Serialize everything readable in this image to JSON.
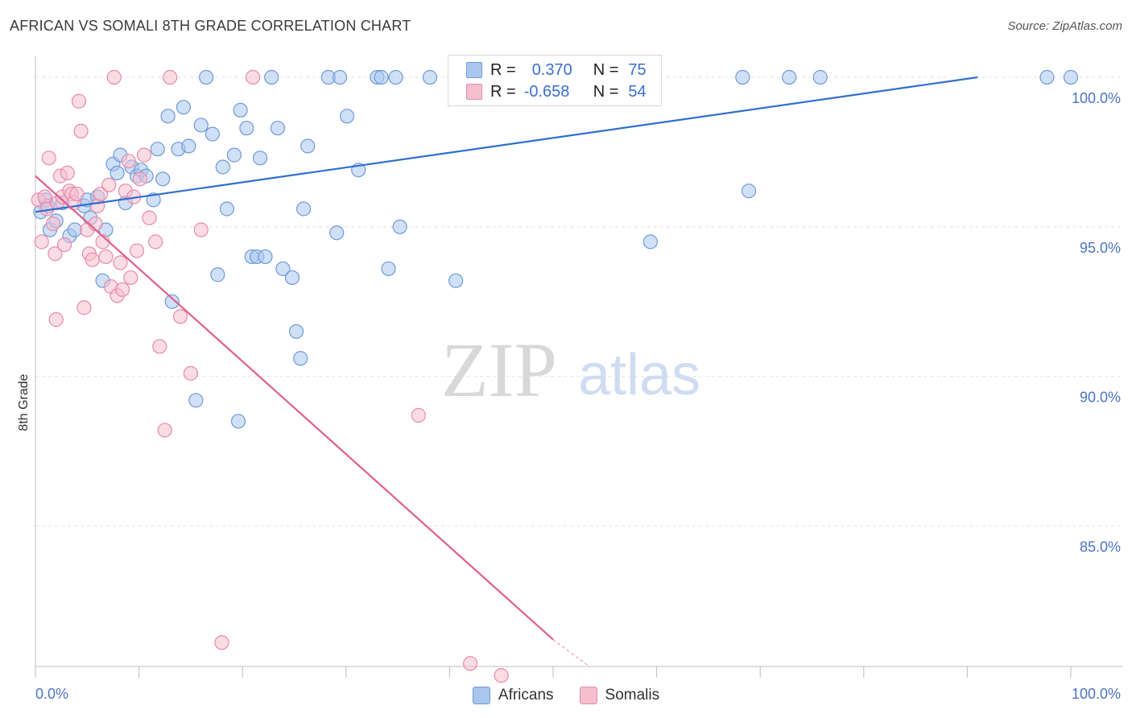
{
  "header": {
    "title": "AFRICAN VS SOMALI 8TH GRADE CORRELATION CHART",
    "source": "Source: ZipAtlas.com"
  },
  "legend": {
    "rows": [
      {
        "r_label": "R =",
        "r_value": "0.370",
        "n_label": "N =",
        "n_value": "75"
      },
      {
        "r_label": "R =",
        "r_value": "-0.658",
        "n_label": "N =",
        "n_value": "54"
      }
    ],
    "bottom": [
      "Africans",
      "Somalis"
    ]
  },
  "watermark": {
    "zip": "ZIP",
    "atlas": "atlas"
  },
  "colors": {
    "africans_fill": "#a9c6ee",
    "africans_stroke": "#6e9ad8",
    "africans_line": "#2f6fd1",
    "somalis_fill": "#f6bfd0",
    "somalis_stroke": "#e88aa8",
    "somalis_line": "#e0608c",
    "tick_text": "#4a74c4",
    "grid": "#e3e3e3"
  },
  "chart_data": {
    "type": "scatter",
    "title": "AFRICAN VS SOMALI 8TH GRADE CORRELATION CHART",
    "xlabel": "",
    "ylabel": "8th Grade",
    "xlim": [
      0,
      100
    ],
    "ylim": [
      80.3,
      100.7
    ],
    "x_tick_labels": [
      "0.0%",
      "100.0%"
    ],
    "y_ticks": [
      85,
      90,
      95,
      100
    ],
    "y_tick_labels": [
      "85.0%",
      "90.0%",
      "95.0%",
      "100.0%"
    ],
    "grid": true,
    "legend_position": "top-center",
    "series": [
      {
        "name": "Africans",
        "r": 0.37,
        "n": 75,
        "trend": {
          "x": [
            0,
            91
          ],
          "y": [
            95.5,
            100.0
          ]
        },
        "points": [
          [
            0.5,
            95.5
          ],
          [
            1,
            95.9
          ],
          [
            1.2,
            95.7
          ],
          [
            1.4,
            94.9
          ],
          [
            2,
            95.2
          ],
          [
            2.6,
            95.8
          ],
          [
            3.3,
            94.7
          ],
          [
            3.8,
            94.9
          ],
          [
            4.7,
            95.7
          ],
          [
            5,
            95.9
          ],
          [
            5.3,
            95.3
          ],
          [
            6,
            96.0
          ],
          [
            6.5,
            93.2
          ],
          [
            6.8,
            94.9
          ],
          [
            7.5,
            97.1
          ],
          [
            7.9,
            96.8
          ],
          [
            8.2,
            97.4
          ],
          [
            8.7,
            95.8
          ],
          [
            9.3,
            97.0
          ],
          [
            9.8,
            96.7
          ],
          [
            10.2,
            96.9
          ],
          [
            10.7,
            96.7
          ],
          [
            11.4,
            95.9
          ],
          [
            11.8,
            97.6
          ],
          [
            12.3,
            96.6
          ],
          [
            12.8,
            98.7
          ],
          [
            13.2,
            92.5
          ],
          [
            13.8,
            97.6
          ],
          [
            14.3,
            99.0
          ],
          [
            14.8,
            97.7
          ],
          [
            15.5,
            89.2
          ],
          [
            16,
            98.4
          ],
          [
            16.5,
            100.0
          ],
          [
            17.1,
            98.1
          ],
          [
            17.6,
            93.4
          ],
          [
            18.1,
            97.0
          ],
          [
            18.5,
            95.6
          ],
          [
            19.2,
            97.4
          ],
          [
            19.6,
            88.5
          ],
          [
            19.8,
            98.9
          ],
          [
            20.4,
            98.3
          ],
          [
            20.9,
            94.0
          ],
          [
            21.4,
            94.0
          ],
          [
            21.7,
            97.3
          ],
          [
            22.2,
            94.0
          ],
          [
            22.8,
            100.0
          ],
          [
            23.4,
            98.3
          ],
          [
            23.9,
            93.6
          ],
          [
            24.8,
            93.3
          ],
          [
            25.2,
            91.5
          ],
          [
            25.6,
            90.6
          ],
          [
            25.9,
            95.6
          ],
          [
            26.3,
            97.7
          ],
          [
            28.3,
            100.0
          ],
          [
            29.1,
            94.8
          ],
          [
            29.4,
            100.0
          ],
          [
            30.1,
            98.7
          ],
          [
            31.2,
            96.9
          ],
          [
            33,
            100.0
          ],
          [
            33.4,
            100.0
          ],
          [
            34.1,
            93.6
          ],
          [
            34.8,
            100.0
          ],
          [
            35.2,
            95.0
          ],
          [
            38.1,
            100.0
          ],
          [
            40.6,
            93.2
          ],
          [
            42.3,
            100.0
          ],
          [
            50.4,
            100.0
          ],
          [
            55.7,
            99.9
          ],
          [
            59.4,
            94.5
          ],
          [
            68.3,
            100.0
          ],
          [
            68.9,
            96.2
          ],
          [
            72.8,
            100.0
          ],
          [
            75.8,
            100.0
          ],
          [
            97.7,
            100.0
          ],
          [
            100,
            100.0
          ]
        ]
      },
      {
        "name": "Somalis",
        "r": -0.658,
        "n": 54,
        "trend": {
          "x": [
            0,
            50
          ],
          "y": [
            96.7,
            81.2
          ]
        },
        "trend_dashed": {
          "x": [
            50,
            53.5
          ],
          "y": [
            81.2,
            80.3
          ]
        },
        "points": [
          [
            0.3,
            95.9
          ],
          [
            0.6,
            94.5
          ],
          [
            0.9,
            96.0
          ],
          [
            1.1,
            95.6
          ],
          [
            1.3,
            97.3
          ],
          [
            1.7,
            95.1
          ],
          [
            1.9,
            94.1
          ],
          [
            2.1,
            95.8
          ],
          [
            2.4,
            96.7
          ],
          [
            2.6,
            96.0
          ],
          [
            2.8,
            94.4
          ],
          [
            3.1,
            96.8
          ],
          [
            3.3,
            96.2
          ],
          [
            3.5,
            96.1
          ],
          [
            3.7,
            95.8
          ],
          [
            4,
            96.1
          ],
          [
            4.2,
            99.2
          ],
          [
            4.4,
            98.2
          ],
          [
            4.7,
            92.3
          ],
          [
            5,
            94.9
          ],
          [
            5.2,
            94.1
          ],
          [
            5.5,
            93.9
          ],
          [
            5.8,
            95.1
          ],
          [
            6,
            95.7
          ],
          [
            6.3,
            96.1
          ],
          [
            6.5,
            94.5
          ],
          [
            6.8,
            94.0
          ],
          [
            7.1,
            96.4
          ],
          [
            7.3,
            93.0
          ],
          [
            7.6,
            100.0
          ],
          [
            7.9,
            92.7
          ],
          [
            8.2,
            93.8
          ],
          [
            8.4,
            92.9
          ],
          [
            8.7,
            96.2
          ],
          [
            9,
            97.2
          ],
          [
            9.2,
            93.3
          ],
          [
            9.5,
            96.0
          ],
          [
            9.8,
            94.2
          ],
          [
            10.1,
            96.6
          ],
          [
            10.5,
            97.4
          ],
          [
            11,
            95.3
          ],
          [
            11.6,
            94.5
          ],
          [
            12,
            91.0
          ],
          [
            12.5,
            88.2
          ],
          [
            13,
            100.0
          ],
          [
            14,
            92.0
          ],
          [
            15,
            90.1
          ],
          [
            16,
            94.9
          ],
          [
            18,
            81.1
          ],
          [
            21,
            100.0
          ],
          [
            37,
            88.7
          ],
          [
            42,
            80.4
          ],
          [
            45,
            80.0
          ],
          [
            2,
            91.9
          ]
        ]
      }
    ]
  }
}
